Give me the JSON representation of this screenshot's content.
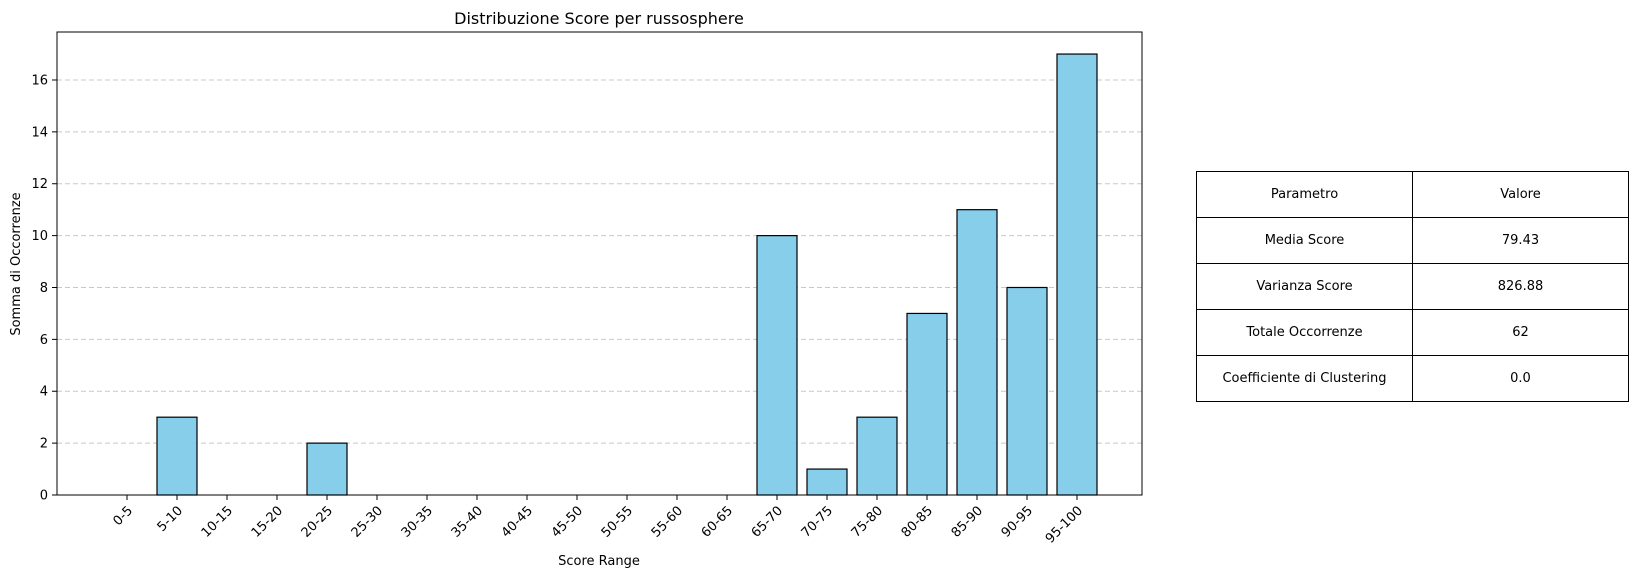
{
  "chart_data": {
    "type": "bar",
    "title": "Distribuzione Score per russosphere",
    "xlabel": "Score Range",
    "ylabel": "Somma di Occorrenze",
    "categories": [
      "0-5",
      "5-10",
      "10-15",
      "15-20",
      "20-25",
      "25-30",
      "30-35",
      "35-40",
      "40-45",
      "45-50",
      "50-55",
      "55-60",
      "60-65",
      "65-70",
      "70-75",
      "75-80",
      "80-85",
      "85-90",
      "90-95",
      "95-100"
    ],
    "values": [
      0,
      3,
      0,
      0,
      2,
      0,
      0,
      0,
      0,
      0,
      0,
      0,
      0,
      10,
      1,
      3,
      7,
      11,
      8,
      17
    ],
    "ylim": [
      0,
      17.85
    ],
    "yticks": [
      0,
      2,
      4,
      6,
      8,
      10,
      12,
      14,
      16
    ],
    "grid": "y dashed",
    "colors": {
      "bar_fill": "#87CEEB",
      "bar_edge": "#000000",
      "grid": "#c8c8c8"
    }
  },
  "table": {
    "header": [
      "Parametro",
      "Valore"
    ],
    "rows": [
      [
        "Media Score",
        "79.43"
      ],
      [
        "Varianza Score",
        "826.88"
      ],
      [
        "Totale Occorrenze",
        "62"
      ],
      [
        "Coefficiente di Clustering",
        "0.0"
      ]
    ]
  }
}
